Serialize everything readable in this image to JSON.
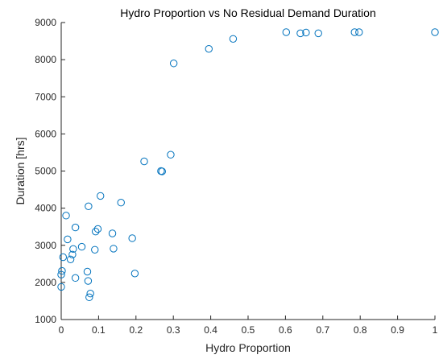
{
  "chart_data": {
    "type": "scatter",
    "title": "Hydro Proportion vs No Residual Demand Duration",
    "xlabel": "Hydro Proportion",
    "ylabel": "Duration [hrs]",
    "xlim": [
      0,
      1
    ],
    "ylim": [
      1000,
      9000
    ],
    "xticks": [
      0,
      0.1,
      0.2,
      0.3,
      0.4,
      0.5,
      0.6,
      0.7,
      0.8,
      0.9,
      1
    ],
    "xtick_labels": [
      "0",
      "0.1",
      "0.2",
      "0.3",
      "0.4",
      "0.5",
      "0.6",
      "0.7",
      "0.8",
      "0.9",
      "1"
    ],
    "yticks": [
      1000,
      2000,
      3000,
      4000,
      5000,
      6000,
      7000,
      8000,
      9000
    ],
    "ytick_labels": [
      "1000",
      "2000",
      "3000",
      "4000",
      "5000",
      "6000",
      "7000",
      "8000",
      "9000"
    ],
    "grid": false,
    "legend": "none",
    "marker": "circle-open",
    "colors": {
      "marker": "#0072BD",
      "axis": "#262626"
    },
    "points": [
      {
        "x": 0.0,
        "y": 1880
      },
      {
        "x": 0.0,
        "y": 2210
      },
      {
        "x": 0.002,
        "y": 2310
      },
      {
        "x": 0.005,
        "y": 2680
      },
      {
        "x": 0.013,
        "y": 3800
      },
      {
        "x": 0.017,
        "y": 3160
      },
      {
        "x": 0.025,
        "y": 2620
      },
      {
        "x": 0.03,
        "y": 2750
      },
      {
        "x": 0.032,
        "y": 2900
      },
      {
        "x": 0.038,
        "y": 3480
      },
      {
        "x": 0.038,
        "y": 2120
      },
      {
        "x": 0.055,
        "y": 2960
      },
      {
        "x": 0.07,
        "y": 2290
      },
      {
        "x": 0.072,
        "y": 2040
      },
      {
        "x": 0.073,
        "y": 4050
      },
      {
        "x": 0.075,
        "y": 1600
      },
      {
        "x": 0.078,
        "y": 1700
      },
      {
        "x": 0.09,
        "y": 2880
      },
      {
        "x": 0.092,
        "y": 3370
      },
      {
        "x": 0.098,
        "y": 3440
      },
      {
        "x": 0.105,
        "y": 4330
      },
      {
        "x": 0.137,
        "y": 3320
      },
      {
        "x": 0.14,
        "y": 2910
      },
      {
        "x": 0.16,
        "y": 4150
      },
      {
        "x": 0.19,
        "y": 3190
      },
      {
        "x": 0.197,
        "y": 2240
      },
      {
        "x": 0.222,
        "y": 5260
      },
      {
        "x": 0.267,
        "y": 5000
      },
      {
        "x": 0.27,
        "y": 4990
      },
      {
        "x": 0.293,
        "y": 5440
      },
      {
        "x": 0.301,
        "y": 7900
      },
      {
        "x": 0.395,
        "y": 8290
      },
      {
        "x": 0.46,
        "y": 8560
      },
      {
        "x": 0.602,
        "y": 8740
      },
      {
        "x": 0.64,
        "y": 8710
      },
      {
        "x": 0.655,
        "y": 8730
      },
      {
        "x": 0.688,
        "y": 8710
      },
      {
        "x": 0.785,
        "y": 8740
      },
      {
        "x": 0.797,
        "y": 8740
      },
      {
        "x": 1.0,
        "y": 8740
      }
    ]
  }
}
